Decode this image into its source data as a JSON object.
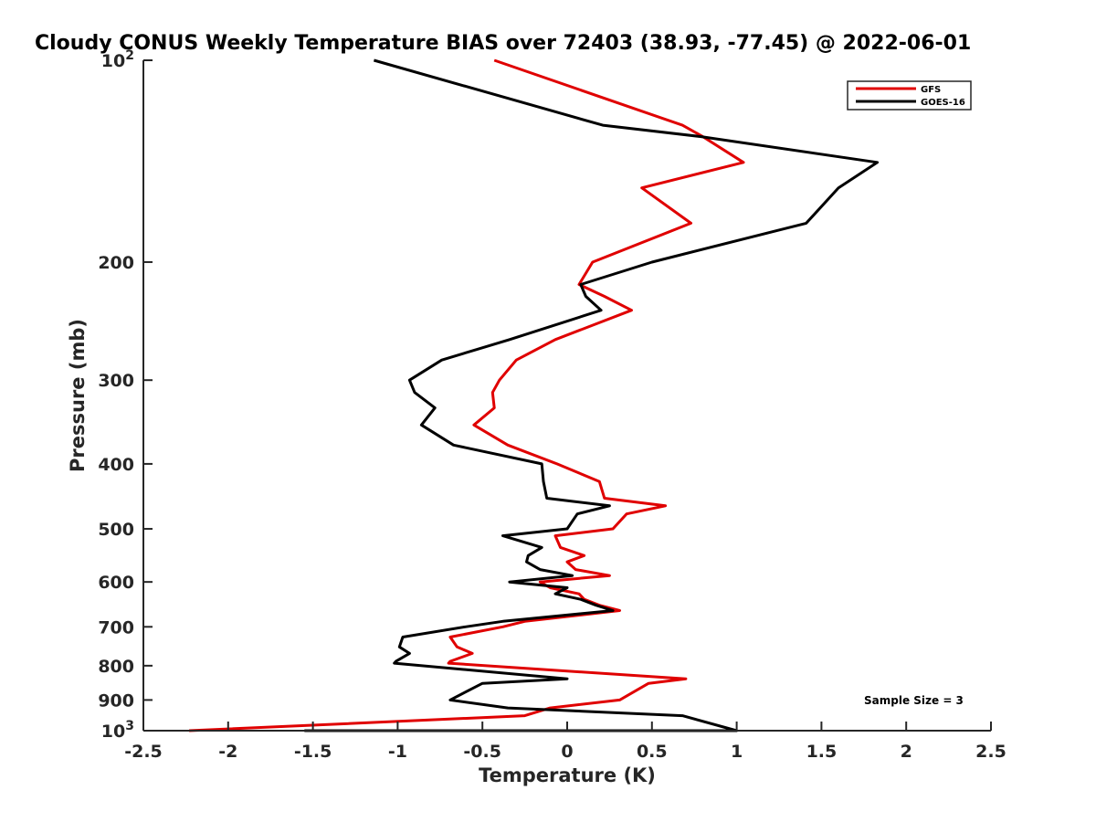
{
  "chart_data": {
    "type": "line",
    "title": "Cloudy CONUS Weekly Temperature BIAS over 72403 (38.93, -77.45) @ 2022-06-01",
    "xlabel": "Temperature (K)",
    "ylabel": "Pressure (mb)",
    "xlim": [
      -2.5,
      2.5
    ],
    "ylim": [
      100,
      1000
    ],
    "y_scale": "log",
    "y_reversed": true,
    "grid": false,
    "x_ticks": [
      -2.5,
      -2,
      -1.5,
      -1,
      -0.5,
      0,
      0.5,
      1,
      1.5,
      2,
      2.5
    ],
    "x_tick_labels": [
      "-2.5",
      "-2",
      "-1.5",
      "-1",
      "-0.5",
      "0",
      "0.5",
      "1",
      "1.5",
      "2",
      "2.5"
    ],
    "y_ticks": [
      100,
      200,
      300,
      400,
      500,
      600,
      700,
      800,
      900,
      1000
    ],
    "y_tick_labels": [
      {
        "base": "10",
        "exp": "2"
      },
      {
        "base": "200",
        "exp": ""
      },
      {
        "base": "300",
        "exp": ""
      },
      {
        "base": "400",
        "exp": ""
      },
      {
        "base": "500",
        "exp": ""
      },
      {
        "base": "600",
        "exp": ""
      },
      {
        "base": "700",
        "exp": ""
      },
      {
        "base": "800",
        "exp": ""
      },
      {
        "base": "900",
        "exp": ""
      },
      {
        "base": "10",
        "exp": "3"
      }
    ],
    "legend_position": "top-right",
    "annotation": "Sample Size = 3",
    "series": [
      {
        "name": "GFS",
        "color": "#e00000",
        "points": [
          [
            -0.43,
            100
          ],
          [
            0.68,
            125
          ],
          [
            0.8,
            130
          ],
          [
            1.04,
            142
          ],
          [
            0.44,
            155
          ],
          [
            0.73,
            175
          ],
          [
            0.15,
            200
          ],
          [
            0.07,
            216
          ],
          [
            0.22,
            225
          ],
          [
            0.38,
            236
          ],
          [
            -0.07,
            261
          ],
          [
            -0.3,
            280
          ],
          [
            -0.4,
            300
          ],
          [
            -0.44,
            313
          ],
          [
            -0.43,
            330
          ],
          [
            -0.55,
            350
          ],
          [
            -0.35,
            375
          ],
          [
            -0.06,
            400
          ],
          [
            0.19,
            425
          ],
          [
            0.22,
            450
          ],
          [
            0.58,
            462
          ],
          [
            0.35,
            475
          ],
          [
            0.27,
            500
          ],
          [
            -0.07,
            512
          ],
          [
            -0.04,
            533
          ],
          [
            0.1,
            548
          ],
          [
            0.0,
            560
          ],
          [
            0.05,
            575
          ],
          [
            0.25,
            587
          ],
          [
            -0.16,
            600
          ],
          [
            -0.1,
            612
          ],
          [
            0.07,
            625
          ],
          [
            0.1,
            637
          ],
          [
            0.19,
            650
          ],
          [
            0.31,
            662
          ],
          [
            -0.25,
            687
          ],
          [
            -0.38,
            700
          ],
          [
            -0.69,
            725
          ],
          [
            -0.65,
            750
          ],
          [
            -0.56,
            767
          ],
          [
            -0.69,
            788
          ],
          [
            -0.7,
            793
          ],
          [
            0.7,
            837
          ],
          [
            0.48,
            850
          ],
          [
            0.31,
            900
          ],
          [
            -0.1,
            925
          ],
          [
            -0.25,
            950
          ],
          [
            -2.23,
            1000
          ]
        ]
      },
      {
        "name": "GOES-16",
        "color": "#000000",
        "points": [
          [
            -1.14,
            100
          ],
          [
            0.21,
            125
          ],
          [
            0.79,
            130
          ],
          [
            1.83,
            142
          ],
          [
            1.6,
            155
          ],
          [
            1.41,
            175
          ],
          [
            0.5,
            200
          ],
          [
            0.08,
            216
          ],
          [
            0.11,
            225
          ],
          [
            0.2,
            236
          ],
          [
            -0.34,
            261
          ],
          [
            -0.74,
            280
          ],
          [
            -0.93,
            300
          ],
          [
            -0.9,
            313
          ],
          [
            -0.78,
            330
          ],
          [
            -0.86,
            350
          ],
          [
            -0.67,
            375
          ],
          [
            -0.15,
            400
          ],
          [
            -0.14,
            425
          ],
          [
            -0.12,
            450
          ],
          [
            0.25,
            462
          ],
          [
            0.06,
            475
          ],
          [
            0.0,
            500
          ],
          [
            -0.38,
            512
          ],
          [
            -0.15,
            533
          ],
          [
            -0.23,
            548
          ],
          [
            -0.24,
            560
          ],
          [
            -0.16,
            575
          ],
          [
            0.03,
            587
          ],
          [
            -0.34,
            600
          ],
          [
            0.0,
            612
          ],
          [
            -0.07,
            625
          ],
          [
            0.08,
            637
          ],
          [
            0.17,
            650
          ],
          [
            0.27,
            662
          ],
          [
            -0.38,
            687
          ],
          [
            -0.6,
            700
          ],
          [
            -0.97,
            725
          ],
          [
            -0.99,
            750
          ],
          [
            -0.93,
            767
          ],
          [
            -1.01,
            788
          ],
          [
            -1.02,
            793
          ],
          [
            0.0,
            837
          ],
          [
            -0.5,
            850
          ],
          [
            -0.69,
            900
          ],
          [
            -0.35,
            925
          ],
          [
            0.68,
            950
          ],
          [
            1.0,
            1000
          ],
          [
            -1.55,
            1000
          ]
        ]
      }
    ]
  }
}
